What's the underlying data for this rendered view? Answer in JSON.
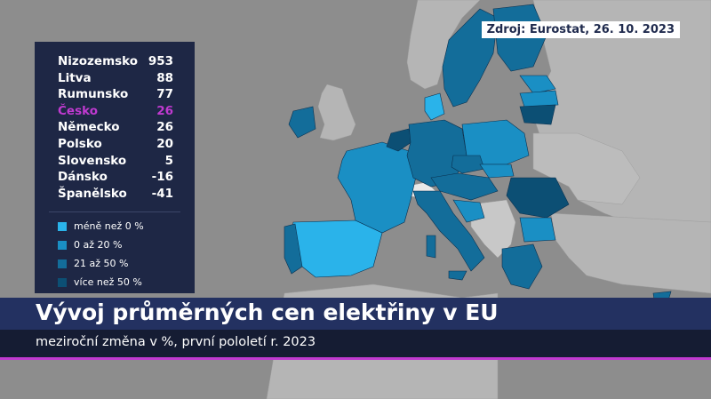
{
  "source": "Zdroj: Eurostat, 26. 10. 2023",
  "title": "Vývoj průměrných cen elektřiny v EU",
  "subtitle": "meziroční změna v %, první pololetí r. 2023",
  "ranking": [
    {
      "country": "Nizozemsko",
      "value": "953"
    },
    {
      "country": "Litva",
      "value": "88"
    },
    {
      "country": "Rumunsko",
      "value": "77"
    },
    {
      "country": "Česko",
      "value": "26",
      "highlight": true
    },
    {
      "country": "Německo",
      "value": "26"
    },
    {
      "country": "Polsko",
      "value": "20"
    },
    {
      "country": "Slovensko",
      "value": "5"
    },
    {
      "country": "Dánsko",
      "value": "-16"
    },
    {
      "country": "Španělsko",
      "value": "-41"
    }
  ],
  "legend": [
    {
      "label": "méně než 0 %",
      "color": "#2ab3ea"
    },
    {
      "label": "0 až 20 %",
      "color": "#1a8fc4"
    },
    {
      "label": "21 až 50 %",
      "color": "#136d9a"
    },
    {
      "label": "více než 50 %",
      "color": "#0c4f74"
    }
  ],
  "colors": {
    "background": "#8d8d8d",
    "sea": "#8d8d8d",
    "land_nonEU": "#b3b3b3",
    "panel": "#1e2745",
    "title_bar": "#233161",
    "subtitle_bar": "#151c33",
    "accent": "#c03ad0"
  }
}
